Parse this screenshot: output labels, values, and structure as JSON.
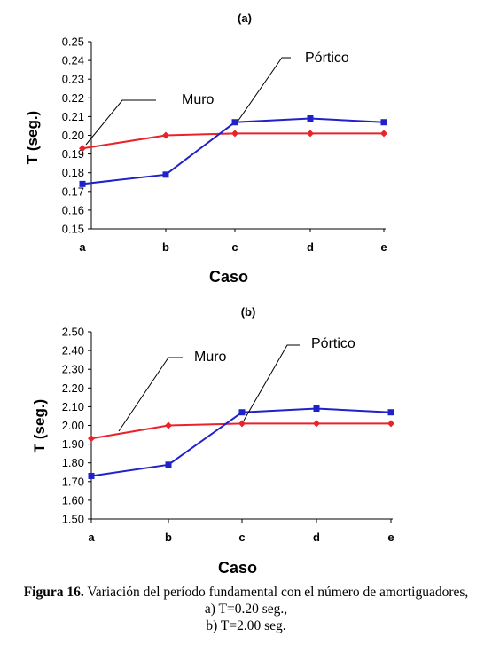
{
  "chart_data": [
    {
      "type": "line",
      "title": "(a)",
      "xlabel": "Caso",
      "ylabel": "T (seg.)",
      "categories": [
        "a",
        "b",
        "c",
        "d",
        "e"
      ],
      "ylim": [
        0.15,
        0.25
      ],
      "yticks": [
        "0.15",
        "0.16",
        "0.17",
        "0.18",
        "0.19",
        "0.20",
        "0.21",
        "0.22",
        "0.23",
        "0.24",
        "0.25"
      ],
      "grid": false,
      "series": [
        {
          "name": "Muro",
          "color": "#e8232a",
          "marker": "diamond",
          "values": [
            0.193,
            0.2,
            0.201,
            0.201,
            0.201
          ]
        },
        {
          "name": "Pórtico",
          "color": "#1f22c8",
          "marker": "square",
          "values": [
            0.174,
            0.179,
            0.207,
            0.209,
            0.207
          ]
        }
      ]
    },
    {
      "type": "line",
      "title": "(b)",
      "xlabel": "Caso",
      "ylabel": "T (seg.)",
      "categories": [
        "a",
        "b",
        "c",
        "d",
        "e"
      ],
      "ylim": [
        1.5,
        2.5
      ],
      "yticks": [
        "1.50",
        "1.60",
        "1.70",
        "1.80",
        "1.90",
        "2.00",
        "2.10",
        "2.20",
        "2.30",
        "2.40",
        "2.50"
      ],
      "grid": false,
      "series": [
        {
          "name": "Muro",
          "color": "#e8232a",
          "marker": "diamond",
          "values": [
            1.93,
            2.0,
            2.01,
            2.01,
            2.01
          ]
        },
        {
          "name": "Pórtico",
          "color": "#1f22c8",
          "marker": "square",
          "values": [
            1.73,
            1.79,
            2.07,
            2.09,
            2.07
          ]
        }
      ]
    }
  ],
  "caption": {
    "label": "Figura 16.",
    "text": " Variación del período fundamental con el número de amortiguadores,",
    "line2": "a) T=0.20 seg.,",
    "line3": "b) T=2.00 seg."
  }
}
